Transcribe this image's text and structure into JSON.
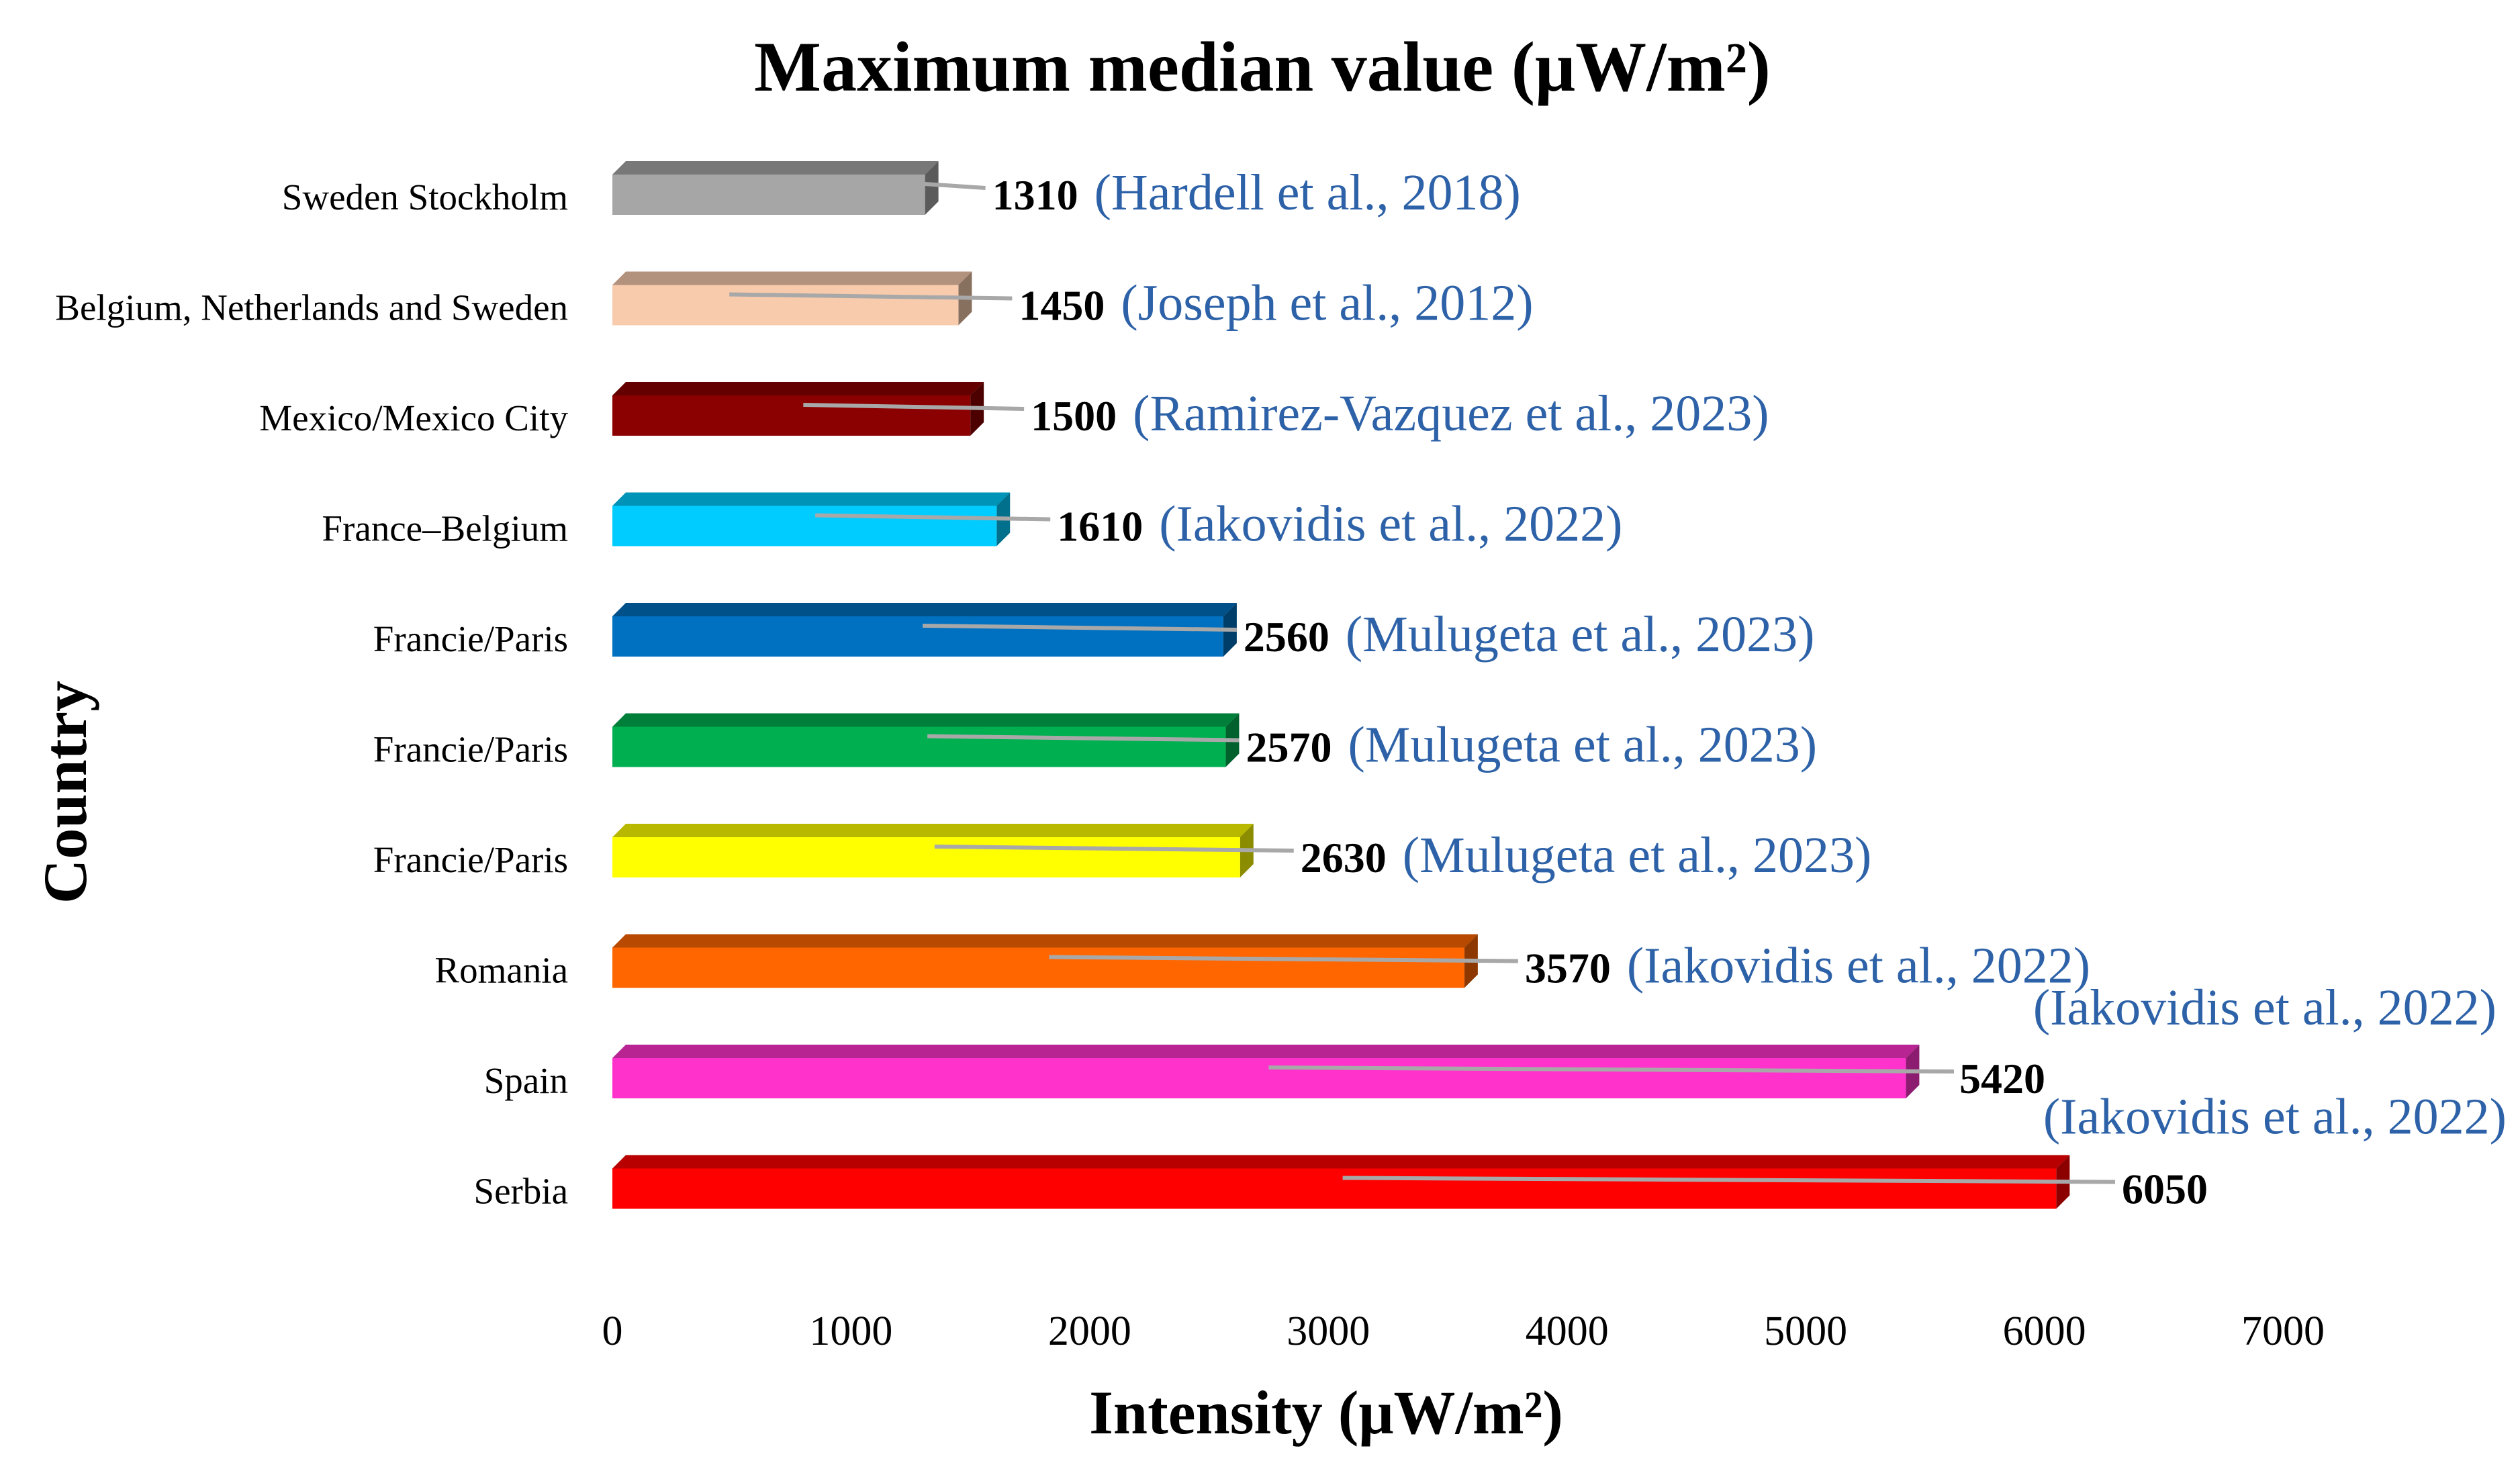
{
  "chart_data": {
    "type": "bar",
    "orientation": "horizontal",
    "title": "Maximum median value (μW/m²)",
    "xlabel": "Intensity (μW/m²)",
    "ylabel": "Country",
    "xlim": [
      0,
      7000
    ],
    "xticks": [
      0,
      1000,
      2000,
      3000,
      4000,
      5000,
      6000,
      7000
    ],
    "grid": false,
    "legend": "none",
    "categories": [
      "Sweden Stockholm",
      "Belgium, Netherlands and Sweden",
      "Mexico/Mexico City",
      "France–Belgium",
      "Francie/Paris",
      "Francie/Paris",
      "Francie/Paris",
      "Romania",
      "Spain",
      "Serbia"
    ],
    "values": [
      1310,
      1450,
      1500,
      1610,
      2560,
      2570,
      2630,
      3570,
      5420,
      6050
    ],
    "annotations": [
      "(Hardell et al., 2018)",
      "(Joseph et al., 2012)",
      "(Ramirez-Vazquez  et al., 2023)",
      "(Iakovidis et al., 2022)",
      "(Mulugeta et al., 2023)",
      "(Mulugeta et al., 2023)",
      "(Mulugeta et al., 2023)",
      "(Iakovidis et al., 2022)",
      "(Iakovidis et al., 2022)",
      "(Iakovidis et al., 2022)"
    ],
    "colors": [
      "#a6a6a6",
      "#f8cbad",
      "#8b0000",
      "#00ccff",
      "#0070c0",
      "#00b050",
      "#ffff00",
      "#ff6600",
      "#ff33cc",
      "#ff0000"
    ],
    "annotation_color": "#2e62a8"
  }
}
